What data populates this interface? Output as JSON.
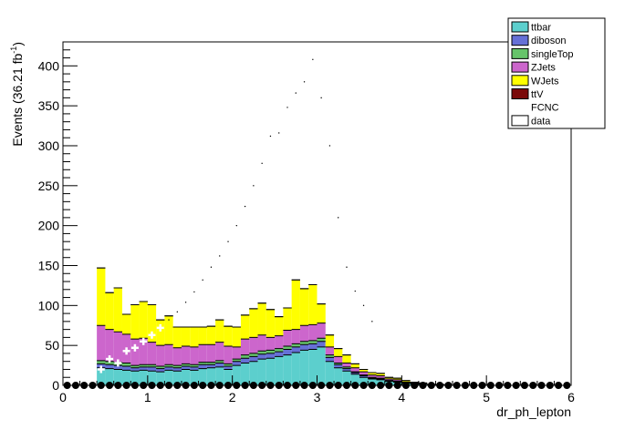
{
  "chart_data": {
    "type": "bar",
    "xlabel": "dr_ph_lepton",
    "ylabel_main": "Events (36.21 fb",
    "ylabel_sup": "-1",
    "ylabel_close": ")",
    "xlim": [
      0,
      6
    ],
    "ylim": [
      0,
      430
    ],
    "x_ticks": [
      0,
      1,
      2,
      3,
      4,
      5,
      6
    ],
    "y_ticks": [
      0,
      50,
      100,
      150,
      200,
      250,
      300,
      350,
      400
    ],
    "bin_width": 0.1,
    "x": [
      0.05,
      0.15,
      0.25,
      0.35,
      0.45,
      0.55,
      0.65,
      0.75,
      0.85,
      0.95,
      1.05,
      1.15,
      1.25,
      1.35,
      1.45,
      1.55,
      1.65,
      1.75,
      1.85,
      1.95,
      2.05,
      2.15,
      2.25,
      2.35,
      2.45,
      2.55,
      2.65,
      2.75,
      2.85,
      2.95,
      3.05,
      3.15,
      3.25,
      3.35,
      3.45,
      3.55,
      3.65,
      3.75,
      3.85,
      3.95,
      4.05,
      4.15,
      4.25,
      4.35,
      4.45,
      4.55,
      4.65,
      4.75,
      4.85,
      4.95,
      5.05,
      5.15,
      5.25,
      5.35,
      5.45,
      5.55,
      5.65,
      5.75,
      5.85,
      5.95
    ],
    "series": [
      {
        "name": "ttbar",
        "color": "#5ccfcd",
        "values": [
          0,
          0,
          0,
          0,
          22,
          21,
          20,
          19,
          18,
          19,
          18,
          17,
          19,
          18,
          20,
          19,
          21,
          22,
          23,
          20,
          25,
          28,
          30,
          33,
          34,
          36,
          38,
          41,
          44,
          45,
          48,
          30,
          22,
          18,
          14,
          10,
          8,
          7,
          5,
          4,
          3,
          2,
          2,
          1,
          1,
          1,
          0,
          0,
          0,
          0,
          0,
          0,
          0,
          0,
          0,
          0,
          0,
          0,
          0,
          0
        ]
      },
      {
        "name": "diboson",
        "color": "#6670d6",
        "values": [
          0,
          0,
          0,
          0,
          5,
          5,
          5,
          5,
          4,
          4,
          5,
          4,
          4,
          4,
          4,
          4,
          5,
          4,
          5,
          4,
          5,
          6,
          6,
          6,
          6,
          6,
          7,
          7,
          7,
          7,
          7,
          5,
          4,
          3,
          2,
          2,
          1,
          1,
          1,
          1,
          0,
          0,
          0,
          0,
          0,
          0,
          0,
          0,
          0,
          0,
          0,
          0,
          0,
          0,
          0,
          0,
          0,
          0,
          0,
          0
        ]
      },
      {
        "name": "singleTop",
        "color": "#66c46a",
        "values": [
          0,
          0,
          0,
          0,
          4,
          4,
          4,
          4,
          3,
          3,
          3,
          3,
          3,
          3,
          3,
          3,
          3,
          3,
          3,
          3,
          3,
          4,
          4,
          4,
          4,
          4,
          4,
          4,
          4,
          4,
          4,
          3,
          2,
          2,
          1,
          1,
          1,
          1,
          0,
          0,
          0,
          0,
          0,
          0,
          0,
          0,
          0,
          0,
          0,
          0,
          0,
          0,
          0,
          0,
          0,
          0,
          0,
          0,
          0,
          0
        ]
      },
      {
        "name": "ZJets",
        "color": "#cc66cc",
        "values": [
          0,
          0,
          0,
          0,
          44,
          40,
          38,
          36,
          33,
          33,
          28,
          26,
          25,
          22,
          22,
          22,
          22,
          22,
          23,
          22,
          15,
          20,
          20,
          20,
          16,
          16,
          20,
          18,
          20,
          20,
          19,
          10,
          8,
          5,
          5,
          4,
          3,
          3,
          2,
          2,
          1,
          1,
          0,
          0,
          0,
          0,
          0,
          0,
          0,
          0,
          0,
          0,
          0,
          0,
          0,
          0,
          0,
          0,
          0,
          0
        ]
      },
      {
        "name": "WJets",
        "color": "#ffff00",
        "values": [
          0,
          0,
          0,
          0,
          72,
          46,
          55,
          25,
          43,
          46,
          47,
          32,
          36,
          26,
          24,
          25,
          22,
          23,
          28,
          25,
          25,
          30,
          36,
          40,
          35,
          24,
          28,
          62,
          46,
          50,
          24,
          15,
          10,
          10,
          5,
          3,
          3,
          3,
          2,
          2,
          2,
          1,
          1,
          0,
          0,
          0,
          0,
          0,
          0,
          0,
          0,
          0,
          0,
          0,
          0,
          0,
          0,
          0,
          0,
          0
        ]
      },
      {
        "name": "ttV",
        "color": "#7a0a0a",
        "values": [
          0,
          0,
          0,
          0,
          0,
          0,
          0,
          0,
          0,
          0,
          0,
          0,
          0,
          0,
          0,
          0,
          0,
          0,
          0,
          0,
          0,
          0,
          0,
          0,
          0,
          0,
          0,
          0,
          0,
          0,
          0,
          0,
          0,
          0,
          0,
          0,
          0,
          0,
          0,
          0,
          0,
          0,
          0,
          0,
          0,
          0,
          0,
          0,
          0,
          0,
          0,
          0,
          0,
          0,
          0,
          0,
          0,
          0,
          0,
          0
        ]
      }
    ],
    "fcnc": {
      "name": "FCNC",
      "x": [
        0.45,
        0.55,
        0.65,
        0.75,
        0.85,
        0.95,
        1.05,
        1.15,
        1.25,
        1.35,
        1.45,
        1.55,
        1.65,
        1.75,
        1.85,
        1.95,
        2.05,
        2.15,
        2.25,
        2.35,
        2.45,
        2.55,
        2.65,
        2.75,
        2.85,
        2.95,
        3.05,
        3.15,
        3.25,
        3.35,
        3.45,
        3.55,
        3.65,
        3.75,
        3.85,
        3.95,
        4.05,
        4.15,
        4.25,
        4.35,
        4.45,
        4.55
      ],
      "values": [
        20,
        33,
        28,
        43,
        47,
        55,
        63,
        72,
        82,
        92,
        104,
        117,
        132,
        148,
        162,
        180,
        200,
        224,
        250,
        278,
        312,
        316,
        348,
        366,
        380,
        408,
        360,
        300,
        210,
        148,
        118,
        100,
        80,
        60,
        40,
        30,
        18,
        12,
        8,
        5,
        3,
        2
      ]
    },
    "data_series": {
      "name": "data",
      "values": [
        0,
        0,
        0,
        0,
        0,
        0,
        0,
        0,
        0,
        0,
        0,
        0,
        0,
        0,
        0,
        0,
        0,
        0,
        0,
        0,
        0,
        0,
        0,
        0,
        0,
        0,
        0,
        0,
        0,
        0,
        0,
        0,
        0,
        0,
        0,
        0,
        0,
        0,
        0,
        0,
        0,
        0,
        0,
        0,
        0,
        0,
        0,
        0,
        0,
        0,
        0,
        0,
        0,
        0,
        0,
        0,
        0,
        0,
        0,
        0
      ]
    },
    "legend": [
      {
        "label": "ttbar",
        "color": "#5ccfcd"
      },
      {
        "label": "diboson",
        "color": "#6670d6"
      },
      {
        "label": "singleTop",
        "color": "#66c46a"
      },
      {
        "label": "ZJets",
        "color": "#cc66cc"
      },
      {
        "label": "WJets",
        "color": "#ffff00"
      },
      {
        "label": "ttV",
        "color": "#7a0a0a"
      },
      {
        "label": "FCNC",
        "color": "none"
      },
      {
        "label": "data",
        "color": "#ffffff"
      }
    ],
    "legend_position": "top-right",
    "grid": false
  }
}
